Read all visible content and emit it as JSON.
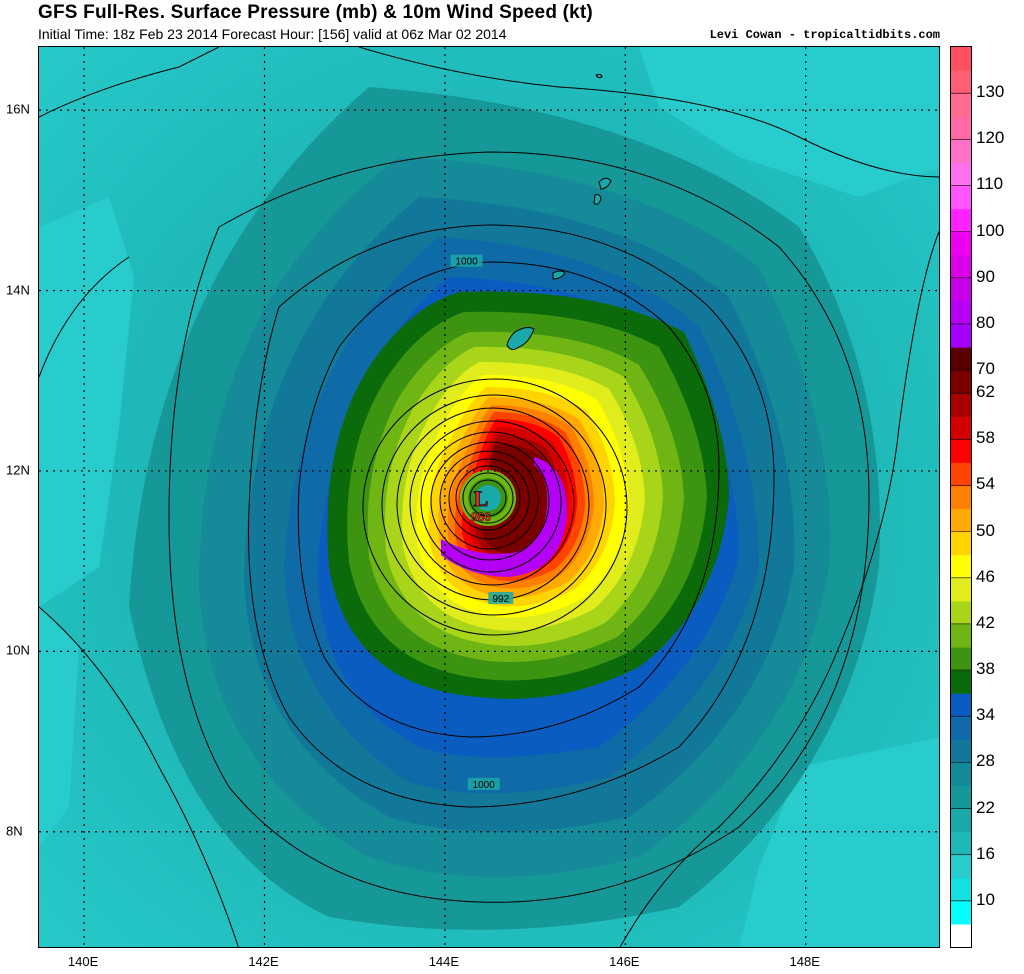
{
  "header": {
    "title": "GFS Full-Res. Surface Pressure (mb) & 10m Wind Speed (kt)",
    "subtitle": "Initial Time: 18z Feb 23 2014 Forecast Hour: [156] valid at 06z Mar 02 2014",
    "credit": "Levi Cowan - tropicaltidbits.com"
  },
  "map": {
    "lat_labels": [
      "16N",
      "14N",
      "12N",
      "10N",
      "8N"
    ],
    "lon_labels": [
      "140E",
      "142E",
      "144E",
      "146E",
      "148E"
    ],
    "lat_values": [
      16,
      14,
      12,
      10,
      8
    ],
    "lon_values": [
      140,
      142,
      144,
      146,
      148
    ],
    "lat_range": [
      6.7,
      16.7
    ],
    "lon_range": [
      139.5,
      149.5
    ],
    "low_center": {
      "symbol": "L",
      "pressure": "966",
      "lat": 11.7,
      "lon": 144.4
    },
    "isobar_labels": [
      {
        "text": "1000",
        "lat": 14.32,
        "lon": 144.24
      },
      {
        "text": "992",
        "lat": 10.58,
        "lon": 144.62
      },
      {
        "text": "1000",
        "lat": 8.52,
        "lon": 144.43
      }
    ],
    "isobar_note": "contours every 4 mb"
  },
  "colorbar": {
    "units": "kt",
    "labels": [
      "130",
      "120",
      "110",
      "100",
      "90",
      "80",
      "70",
      "62",
      "58",
      "54",
      "50",
      "46",
      "42",
      "38",
      "34",
      "28",
      "22",
      "16",
      "10"
    ],
    "colors": [
      "#ffffff",
      "#00ffff",
      "#14e0e0",
      "#28cccc",
      "#1fb8b8",
      "#1aa8a8",
      "#179898",
      "#158a98",
      "#12789a",
      "#0f6aa8",
      "#0a5cc0",
      "#0b6b0b",
      "#3c9410",
      "#6fb614",
      "#a8d41a",
      "#e0ec1c",
      "#ffff00",
      "#ffd400",
      "#ffaa00",
      "#ff7f00",
      "#ff4400",
      "#ff0000",
      "#d20000",
      "#a80000",
      "#7a0000",
      "#5a0000",
      "#a400ff",
      "#b400f4",
      "#c800e8",
      "#dc00e8",
      "#f000f0",
      "#ff22ff",
      "#ff55ff",
      "#ff70ee",
      "#ff70c8",
      "#ff6aa5",
      "#ff6c90",
      "#ff5f75",
      "#ff5060"
    ]
  }
}
